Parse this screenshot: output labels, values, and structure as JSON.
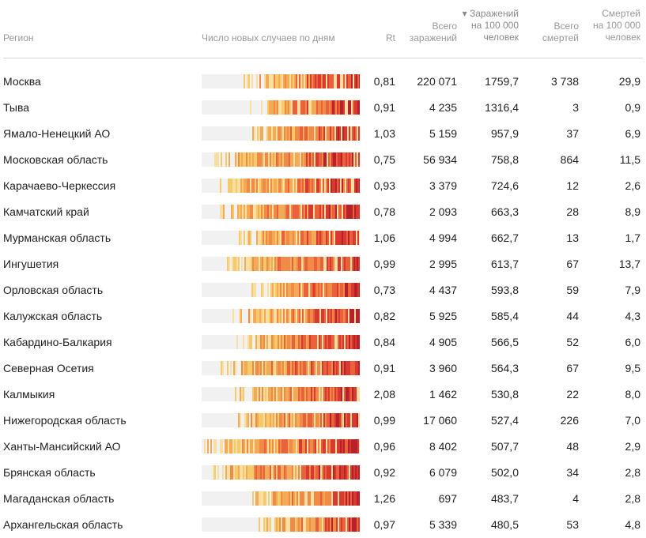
{
  "header": {
    "region": "Регион",
    "daily": "Число новых случаев по дням",
    "rt": "Rt",
    "total_cases": [
      "Всего",
      "заражений"
    ],
    "cases_per_100k": [
      "▾ Заражений",
      "на 100 000",
      "человек"
    ],
    "total_deaths": [
      "Всего",
      "смертей"
    ],
    "deaths_per_100k": [
      "Смертей",
      "на 100 000",
      "человек"
    ]
  },
  "colors": {
    "empty": "#f1f1f1",
    "scale": [
      "#f8dea0",
      "#f6c96a",
      "#f3aa56",
      "#ef8b47",
      "#e9623b",
      "#d93a2f",
      "#b8202a"
    ]
  },
  "rows": [
    {
      "region": "Москва",
      "rt": "0,81",
      "total": "220 071",
      "per100k": "1759,7",
      "deaths": "3 738",
      "deaths100k": "29,9"
    },
    {
      "region": "Тыва",
      "rt": "0,91",
      "total": "4 235",
      "per100k": "1316,4",
      "deaths": "3",
      "deaths100k": "0,9"
    },
    {
      "region": "Ямало-Ненецкий АО",
      "rt": "1,03",
      "total": "5 159",
      "per100k": "957,9",
      "deaths": "37",
      "deaths100k": "6,9"
    },
    {
      "region": "Московская область",
      "rt": "0,75",
      "total": "56 934",
      "per100k": "758,8",
      "deaths": "864",
      "deaths100k": "11,5"
    },
    {
      "region": "Карачаево-Черкессия",
      "rt": "0,93",
      "total": "3 379",
      "per100k": "724,6",
      "deaths": "12",
      "deaths100k": "2,6"
    },
    {
      "region": "Камчатский край",
      "rt": "0,78",
      "total": "2 093",
      "per100k": "663,3",
      "deaths": "28",
      "deaths100k": "8,9"
    },
    {
      "region": "Мурманская область",
      "rt": "1,06",
      "total": "4 994",
      "per100k": "662,7",
      "deaths": "13",
      "deaths100k": "1,7"
    },
    {
      "region": "Ингушетия",
      "rt": "0,99",
      "total": "2 995",
      "per100k": "613,7",
      "deaths": "67",
      "deaths100k": "13,7"
    },
    {
      "region": "Орловская область",
      "rt": "0,73",
      "total": "4 437",
      "per100k": "593,8",
      "deaths": "59",
      "deaths100k": "7,9"
    },
    {
      "region": "Калужская область",
      "rt": "0,82",
      "total": "5 925",
      "per100k": "585,4",
      "deaths": "44",
      "deaths100k": "4,3"
    },
    {
      "region": "Кабардино-Балкария",
      "rt": "0,84",
      "total": "4 905",
      "per100k": "566,5",
      "deaths": "52",
      "deaths100k": "6,0"
    },
    {
      "region": "Северная Осетия",
      "rt": "0,91",
      "total": "3 960",
      "per100k": "564,3",
      "deaths": "67",
      "deaths100k": "9,5"
    },
    {
      "region": "Калмыкия",
      "rt": "2,08",
      "total": "1 462",
      "per100k": "530,8",
      "deaths": "22",
      "deaths100k": "8,0"
    },
    {
      "region": "Нижегородская область",
      "rt": "0,99",
      "total": "17 060",
      "per100k": "527,4",
      "deaths": "226",
      "deaths100k": "7,0"
    },
    {
      "region": "Ханты-Мансийский АО",
      "rt": "0,96",
      "total": "8 402",
      "per100k": "507,7",
      "deaths": "48",
      "deaths100k": "2,9"
    },
    {
      "region": "Брянская область",
      "rt": "0,92",
      "total": "6 079",
      "per100k": "502,0",
      "deaths": "34",
      "deaths100k": "2,8"
    },
    {
      "region": "Магаданская область",
      "rt": "1,26",
      "total": "697",
      "per100k": "483,7",
      "deaths": "4",
      "deaths100k": "2,8"
    },
    {
      "region": "Архангельская область",
      "rt": "0,97",
      "total": "5 339",
      "per100k": "480,5",
      "deaths": "53",
      "deaths100k": "4,8"
    }
  ]
}
